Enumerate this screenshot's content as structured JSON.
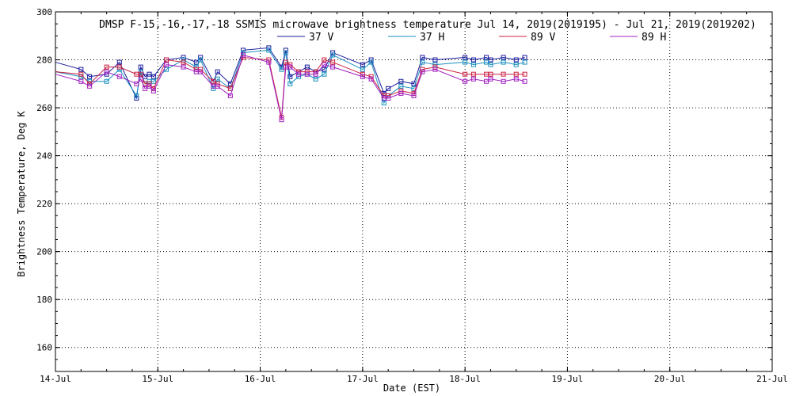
{
  "chart_data": {
    "type": "line",
    "title": "DMSP F-15,-16,-17,-18 SSMIS microwave brightness temperature Jul 14, 2019(2019195) - Jul 21, 2019(2019202)",
    "xlabel": "Date (EST)",
    "ylabel": "Brightness Temperature, Deg K",
    "xlim": [
      "2019-07-14",
      "2019-07-21"
    ],
    "ylim": [
      150,
      300
    ],
    "x_ticks": [
      "14-Jul",
      "15-Jul",
      "16-Jul",
      "17-Jul",
      "18-Jul",
      "19-Jul",
      "20-Jul",
      "21-Jul"
    ],
    "y_ticks": [
      160,
      180,
      200,
      220,
      240,
      260,
      280,
      300
    ],
    "grid": true,
    "legend": "top",
    "marker": "square",
    "x": [
      "2019-07-14",
      "2019-07-14",
      "2019-07-14",
      "2019-07-14",
      "2019-07-14",
      "2019-07-14",
      "2019-07-14",
      "2019-07-14",
      "2019-07-14",
      "2019-07-14",
      "2019-07-15",
      "2019-07-15",
      "2019-07-15",
      "2019-07-15",
      "2019-07-15",
      "2019-07-15",
      "2019-07-15",
      "2019-07-15",
      "2019-07-16",
      "2019-07-16",
      "2019-07-16",
      "2019-07-16",
      "2019-07-16",
      "2019-07-16",
      "2019-07-16",
      "2019-07-16",
      "2019-07-16",
      "2019-07-17",
      "2019-07-17",
      "2019-07-17",
      "2019-07-17",
      "2019-07-17",
      "2019-07-17",
      "2019-07-17",
      "2019-07-17",
      "2019-07-18",
      "2019-07-18",
      "2019-07-18",
      "2019-07-18",
      "2019-07-18",
      "2019-07-18",
      "2019-07-18"
    ],
    "x_hours": [
      0,
      6,
      8,
      12,
      15,
      19,
      20,
      21,
      22,
      23,
      2,
      6,
      9,
      10,
      13,
      14,
      17,
      20,
      2,
      5,
      6,
      7,
      9,
      11,
      13,
      15,
      17,
      0,
      2,
      5,
      6,
      9,
      12,
      14,
      17,
      0,
      2,
      5,
      6,
      9,
      12,
      14
    ],
    "series": [
      {
        "name": "37 V",
        "color": "#1a1a9e",
        "values": [
          279,
          276,
          273,
          274,
          279,
          264,
          277,
          273,
          274,
          273,
          280,
          281,
          279,
          281,
          271,
          275,
          270,
          284,
          285,
          277,
          284,
          273,
          275,
          277,
          275,
          276,
          283,
          278,
          280,
          266,
          268,
          271,
          270,
          281,
          280,
          281,
          280,
          281,
          280,
          281,
          280,
          281
        ]
      },
      {
        "name": "37 H",
        "color": "#1a8fbf",
        "values": [
          275,
          273,
          271,
          271,
          276,
          265,
          275,
          270,
          271,
          271,
          276,
          280,
          277,
          280,
          268,
          272,
          268,
          283,
          284,
          276,
          283,
          270,
          273,
          274,
          272,
          274,
          282,
          276,
          279,
          262,
          265,
          269,
          268,
          279,
          278,
          279,
          278,
          279,
          278,
          279,
          278,
          279
        ]
      },
      {
        "name": "89 V",
        "color": "#cc2244",
        "values": [
          275,
          274,
          270,
          277,
          277,
          274,
          274,
          270,
          270,
          268,
          280,
          279,
          276,
          276,
          271,
          270,
          268,
          281,
          280,
          256,
          279,
          278,
          275,
          275,
          275,
          280,
          279,
          274,
          273,
          265,
          265,
          267,
          266,
          276,
          277,
          274,
          274,
          274,
          274,
          274,
          274,
          274
        ]
      },
      {
        "name": "89 H",
        "color": "#a020c0",
        "values": [
          274,
          271,
          269,
          275,
          273,
          270,
          272,
          268,
          269,
          267,
          278,
          277,
          275,
          275,
          269,
          269,
          265,
          282,
          279,
          255,
          277,
          277,
          274,
          274,
          274,
          278,
          277,
          273,
          272,
          264,
          264,
          266,
          265,
          275,
          276,
          271,
          272,
          271,
          272,
          271,
          272,
          271
        ]
      }
    ]
  }
}
